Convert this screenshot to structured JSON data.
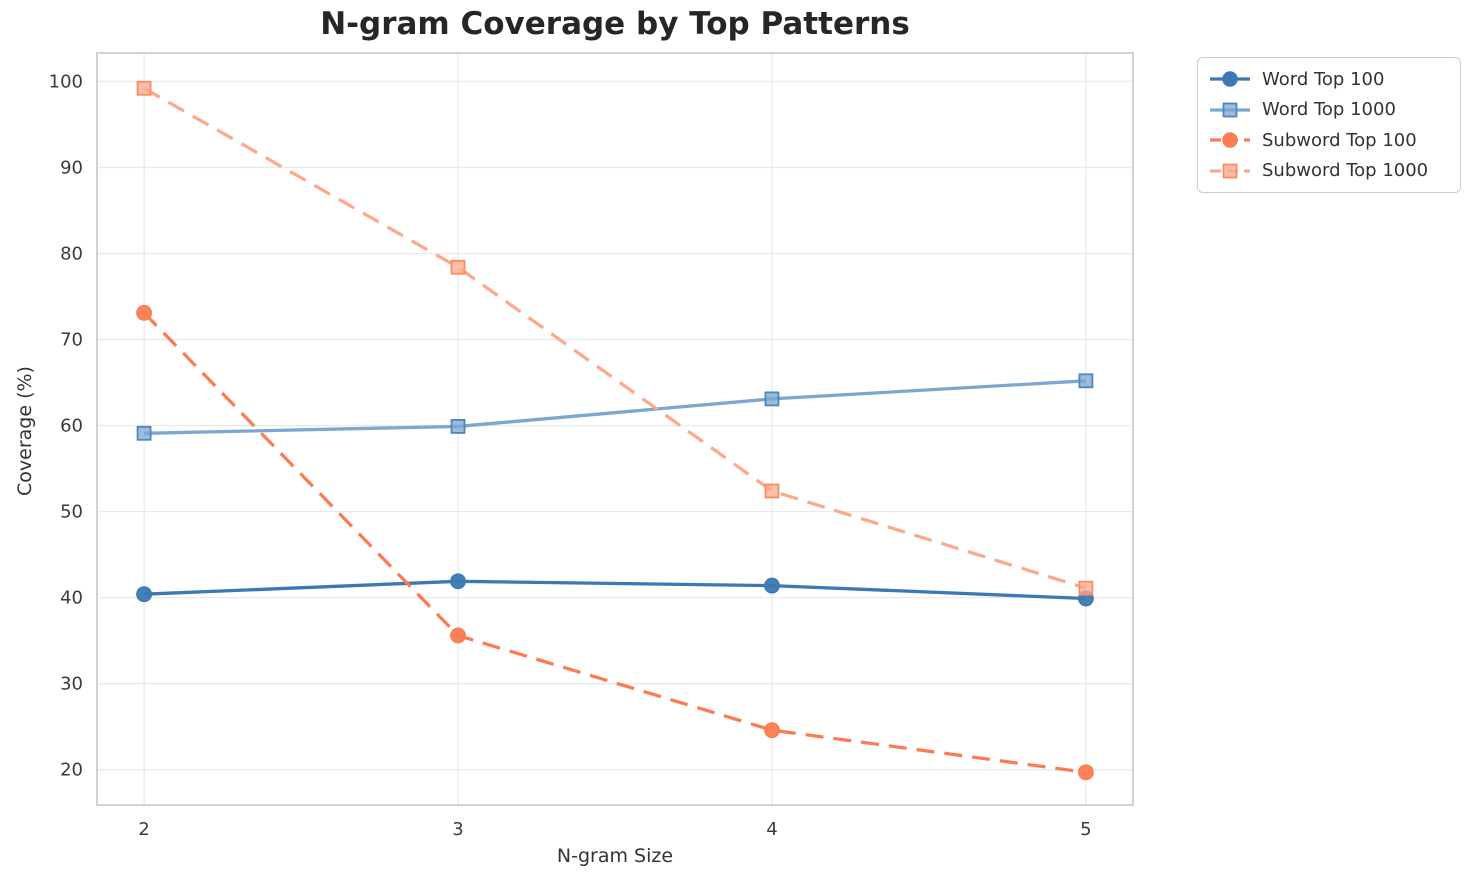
{
  "chart_data": {
    "type": "line",
    "title": "N-gram Coverage by Top Patterns",
    "xlabel": "N-gram Size",
    "ylabel": "Coverage (%)",
    "x": [
      2,
      3,
      4,
      5
    ],
    "xtick_labels": [
      "2",
      "3",
      "4",
      "5"
    ],
    "yticks": [
      20,
      30,
      40,
      50,
      60,
      70,
      80,
      90,
      100
    ],
    "xlim": [
      1.85,
      5.15
    ],
    "ylim": [
      15.9,
      103.3
    ],
    "grid": true,
    "legend_position": "outside-top-right",
    "series": [
      {
        "name": "Word Top 100",
        "values": [
          40.4,
          41.9,
          41.4,
          39.9
        ],
        "color": "#3c79b4",
        "edge": "#3c79b4",
        "marker": "circle",
        "dash": false
      },
      {
        "name": "Word Top 1000",
        "values": [
          59.1,
          59.9,
          63.1,
          65.2
        ],
        "color": "#7ba7d0",
        "edge": "#4d86be",
        "marker": "square",
        "dash": false
      },
      {
        "name": "Subword Top 100",
        "values": [
          73.1,
          35.6,
          24.6,
          19.7
        ],
        "color": "#fb7c52",
        "edge": "#fb7c52",
        "marker": "circle",
        "dash": true
      },
      {
        "name": "Subword Top 1000",
        "values": [
          99.2,
          78.4,
          52.4,
          41.1
        ],
        "color": "#fcaa8b",
        "edge": "#fa8b62",
        "marker": "square",
        "dash": true
      }
    ],
    "style": {
      "grid_color": "#e9e9e9",
      "spine_color": "#d2d2d2",
      "tick_label_color": "#3b3b3b",
      "title_color": "#262626",
      "background": "#ffffff"
    }
  }
}
